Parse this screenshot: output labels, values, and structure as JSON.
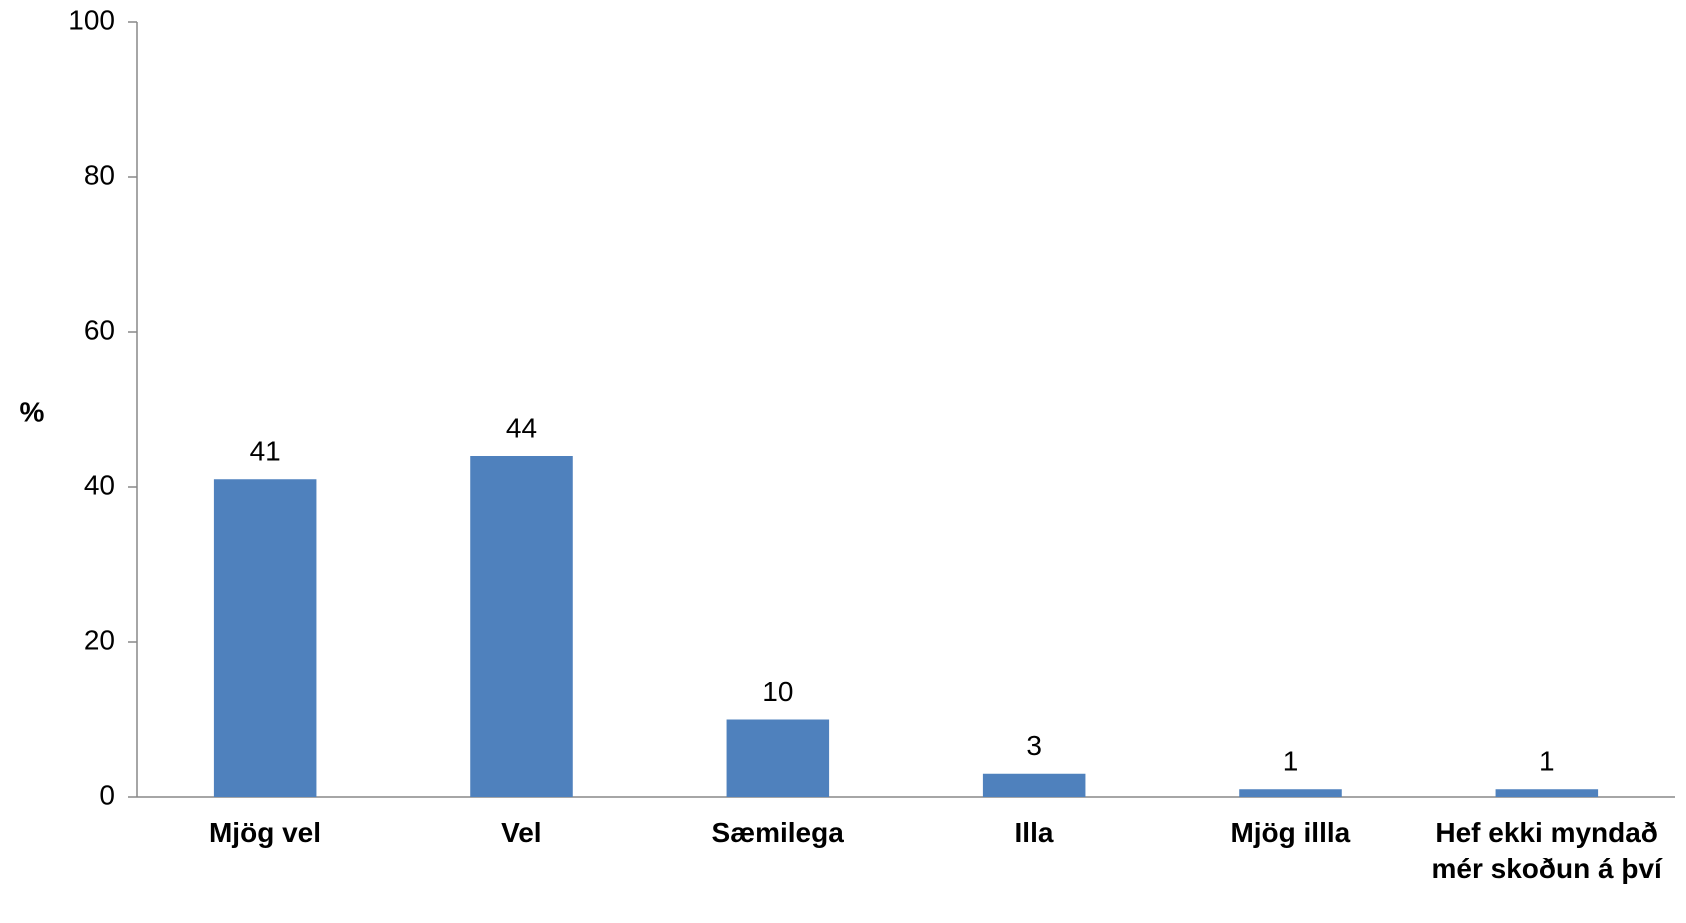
{
  "chart_data": {
    "type": "bar",
    "y_label": "%",
    "categories": [
      "Mjög vel",
      "Vel",
      "Sæmilega",
      "Illa",
      "Mjög illla",
      "Hef ekki myndað mér skoðun á því"
    ],
    "values": [
      41,
      44,
      10,
      3,
      1,
      1
    ],
    "color": "#4f81bd",
    "ylim": [
      0,
      100
    ],
    "yticks": [
      0,
      20,
      40,
      60,
      80,
      100
    ],
    "grid": false
  }
}
